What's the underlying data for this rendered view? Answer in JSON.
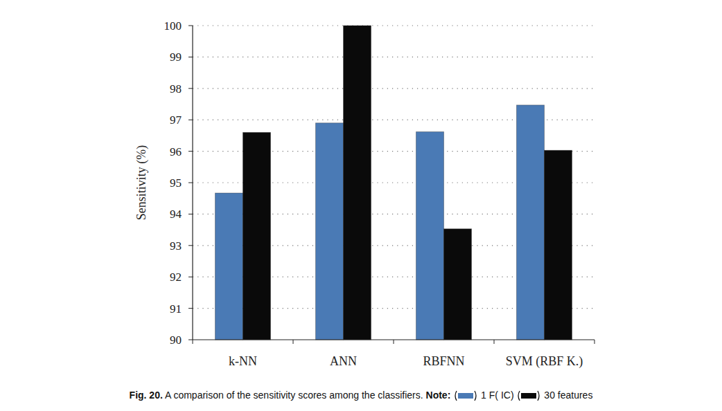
{
  "chart_data": {
    "type": "bar",
    "caption_label": "Fig. 20.",
    "title": "A comparison of the sensitivity scores among the classifiers.",
    "note_label": "Note:",
    "y_label": "Sensitivity (%)",
    "categories": [
      "k-NN",
      "ANN",
      "RBFNN",
      "SVM (RBF K.)"
    ],
    "series": [
      {
        "name": "1 F( IC)",
        "color": "#4a7ab5",
        "values": [
          94.67,
          96.9,
          96.62,
          97.47
        ]
      },
      {
        "name": "30 features",
        "color": "#0a0a0a",
        "values": [
          96.6,
          100,
          93.53,
          96.03
        ]
      }
    ],
    "ylim": [
      90,
      100
    ],
    "yticks": [
      90,
      91,
      92,
      93,
      94,
      95,
      96,
      97,
      98,
      99,
      100
    ],
    "grid": true
  }
}
